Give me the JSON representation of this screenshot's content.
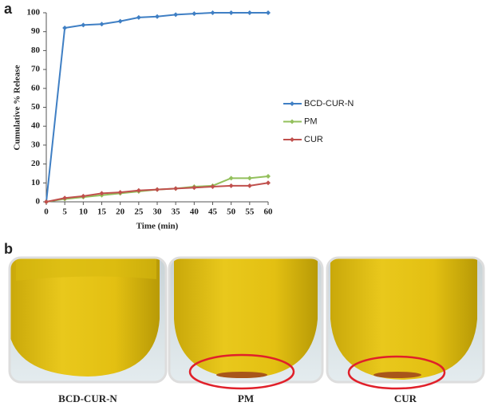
{
  "panel_a_label": "a",
  "panel_b_label": "b",
  "photo_captions": [
    "BCD-CUR-N",
    "PM",
    "CUR"
  ],
  "chart_data": {
    "type": "line",
    "xlabel": "Time (min)",
    "ylabel": "Cumulative % Release",
    "x": [
      0,
      5,
      10,
      15,
      20,
      25,
      30,
      35,
      40,
      45,
      50,
      55,
      60
    ],
    "series": [
      {
        "name": "BCD-CUR-N",
        "color": "#3f7fc4",
        "values": [
          0,
          92,
          93.5,
          94,
          95.5,
          97.5,
          98,
          99,
          99.5,
          100,
          100,
          100,
          100
        ]
      },
      {
        "name": "PM",
        "color": "#93c05c",
        "values": [
          0,
          1.5,
          2.5,
          3.5,
          4.5,
          5.5,
          6.5,
          7,
          8,
          8.5,
          12.5,
          12.5,
          13.5
        ]
      },
      {
        "name": "CUR",
        "color": "#c0504d",
        "values": [
          0,
          2,
          3,
          4.5,
          5,
          6,
          6.5,
          7,
          7.5,
          8,
          8.5,
          8.5,
          10
        ]
      }
    ],
    "xlim": [
      0,
      60
    ],
    "xticks": [
      0,
      5,
      10,
      15,
      20,
      25,
      30,
      35,
      40,
      45,
      50,
      55,
      60
    ],
    "ylim": [
      0,
      100
    ],
    "yticks": [
      0,
      10,
      20,
      30,
      40,
      50,
      60,
      70,
      80,
      90,
      100
    ],
    "grid": false,
    "legend": "right"
  }
}
